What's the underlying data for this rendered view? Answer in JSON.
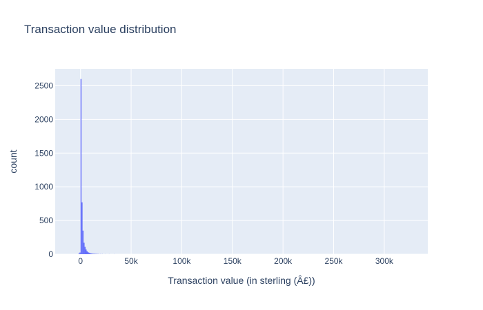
{
  "chart_data": {
    "type": "bar",
    "title": "Transaction value distribution",
    "xlabel": "Transaction value (in sterling (Â£))",
    "ylabel": "count",
    "xlim": [
      -25000,
      343000
    ],
    "ylim": [
      0,
      2750
    ],
    "xticks": [
      0,
      50000,
      100000,
      150000,
      200000,
      250000,
      300000
    ],
    "xtick_labels": [
      "0",
      "50k",
      "100k",
      "150k",
      "200k",
      "250k",
      "300k"
    ],
    "yticks": [
      0,
      500,
      1000,
      1500,
      2000,
      2500
    ],
    "ytick_labels": [
      "0",
      "500",
      "1000",
      "1500",
      "2000",
      "2500"
    ],
    "grid": true,
    "bar_color": "#636efa",
    "plot_bg": "#e5ecf6",
    "bins": [
      {
        "x0": -2000,
        "x1": -1000,
        "count": 10
      },
      {
        "x0": -1000,
        "x1": 0,
        "count": 25
      },
      {
        "x0": 0,
        "x1": 1000,
        "count": 2600
      },
      {
        "x0": 1000,
        "x1": 2000,
        "count": 770
      },
      {
        "x0": 2000,
        "x1": 3000,
        "count": 350
      },
      {
        "x0": 3000,
        "x1": 4000,
        "count": 170
      },
      {
        "x0": 4000,
        "x1": 5000,
        "count": 110
      },
      {
        "x0": 5000,
        "x1": 6000,
        "count": 70
      },
      {
        "x0": 6000,
        "x1": 7000,
        "count": 45
      },
      {
        "x0": 7000,
        "x1": 8000,
        "count": 30
      },
      {
        "x0": 8000,
        "x1": 9000,
        "count": 22
      },
      {
        "x0": 9000,
        "x1": 10000,
        "count": 16
      },
      {
        "x0": 10000,
        "x1": 11000,
        "count": 12
      },
      {
        "x0": 11000,
        "x1": 12000,
        "count": 9
      },
      {
        "x0": 12000,
        "x1": 13000,
        "count": 7
      },
      {
        "x0": 13000,
        "x1": 14000,
        "count": 6
      },
      {
        "x0": 14000,
        "x1": 15000,
        "count": 5
      },
      {
        "x0": 15000,
        "x1": 16000,
        "count": 4
      },
      {
        "x0": 16000,
        "x1": 17000,
        "count": 3
      },
      {
        "x0": 17000,
        "x1": 18000,
        "count": 3
      },
      {
        "x0": 19000,
        "x1": 20000,
        "count": 2
      },
      {
        "x0": 21000,
        "x1": 22000,
        "count": 2
      },
      {
        "x0": 24000,
        "x1": 25000,
        "count": 1
      },
      {
        "x0": 28000,
        "x1": 29000,
        "count": 1
      },
      {
        "x0": 33000,
        "x1": 34000,
        "count": 1
      }
    ]
  }
}
